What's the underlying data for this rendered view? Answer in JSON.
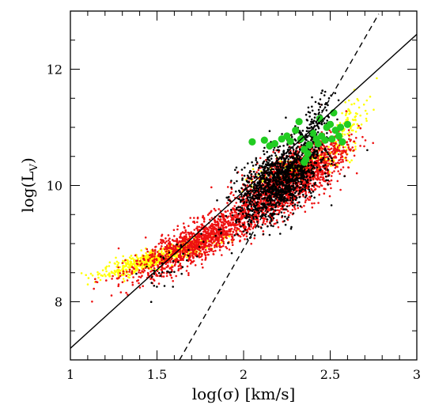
{
  "chart_data": {
    "type": "scatter",
    "title": "",
    "xlabel": "log(σ) [km/s]",
    "ylabel_main": "log(L",
    "ylabel_sub": "V",
    "ylabel_close": ")",
    "xlim": [
      1,
      3
    ],
    "ylim": [
      7,
      13
    ],
    "x_ticks": [
      1,
      1.5,
      2,
      2.5,
      3
    ],
    "x_tick_labels": [
      "1",
      "1.5",
      "2",
      "2.5",
      "3"
    ],
    "y_ticks": [
      8,
      10,
      12
    ],
    "y_tick_labels": [
      "8",
      "10",
      "12"
    ],
    "x_minor_step": 0.1,
    "y_minor_step": 0.5,
    "grid": false,
    "legend": "none",
    "colors": {
      "yellow": "#ffff00",
      "red": "#ee1111",
      "black": "#000000",
      "green": "#22cc22",
      "line": "#000000"
    },
    "fit_lines": [
      {
        "style": "solid",
        "x": [
          1.0,
          3.0
        ],
        "y": [
          7.2,
          12.6
        ]
      },
      {
        "style": "dashed",
        "x": [
          1.63,
          2.78
        ],
        "y": [
          7.0,
          12.95
        ]
      }
    ],
    "series": [
      {
        "color": "yellow",
        "marker": "dot",
        "clusters": [
          {
            "cx": 1.5,
            "cy": 8.75,
            "n": 650,
            "sa": 0.16,
            "sb": 0.16,
            "cor": 0.88
          },
          {
            "cx": 2.35,
            "cy": 10.35,
            "n": 320,
            "sa": 0.14,
            "sb": 0.17,
            "cor": 0.8
          },
          {
            "cx": 2.62,
            "cy": 11.1,
            "n": 80,
            "sa": 0.06,
            "sb": 0.25,
            "cor": 0.7
          }
        ]
      },
      {
        "color": "red",
        "marker": "dot",
        "clusters": [
          {
            "cx": 1.75,
            "cy": 9.05,
            "n": 1300,
            "sa": 0.2,
            "sb": 0.33,
            "cor": 0.86
          },
          {
            "cx": 2.22,
            "cy": 10.0,
            "n": 1200,
            "sa": 0.12,
            "sb": 0.3,
            "cor": 0.55
          },
          {
            "cx": 2.45,
            "cy": 10.4,
            "n": 400,
            "sa": 0.09,
            "sb": 0.28,
            "cor": 0.6
          }
        ]
      },
      {
        "color": "black",
        "marker": "dot",
        "clusters": [
          {
            "cx": 2.2,
            "cy": 10.05,
            "n": 1300,
            "sa": 0.12,
            "sb": 0.35,
            "cor": 0.55
          },
          {
            "cx": 2.42,
            "cy": 10.95,
            "n": 180,
            "sa": 0.05,
            "sb": 0.3,
            "cor": 0.5
          },
          {
            "cx": 1.6,
            "cy": 8.65,
            "n": 40,
            "sa": 0.1,
            "sb": 0.25,
            "cor": 0.7
          }
        ]
      },
      {
        "color": "green",
        "marker": "large-circle",
        "points": [
          [
            2.05,
            10.75
          ],
          [
            2.12,
            10.78
          ],
          [
            2.15,
            10.68
          ],
          [
            2.18,
            10.72
          ],
          [
            2.22,
            10.8
          ],
          [
            2.25,
            10.85
          ],
          [
            2.27,
            10.76
          ],
          [
            2.3,
            10.95
          ],
          [
            2.32,
            11.1
          ],
          [
            2.33,
            10.8
          ],
          [
            2.35,
            10.62
          ],
          [
            2.36,
            10.45
          ],
          [
            2.37,
            10.55
          ],
          [
            2.38,
            10.7
          ],
          [
            2.4,
            10.9
          ],
          [
            2.42,
            10.8
          ],
          [
            2.43,
            10.72
          ],
          [
            2.44,
            11.15
          ],
          [
            2.45,
            10.85
          ],
          [
            2.47,
            10.78
          ],
          [
            2.48,
            11.0
          ],
          [
            2.5,
            11.05
          ],
          [
            2.51,
            10.8
          ],
          [
            2.52,
            11.25
          ],
          [
            2.53,
            10.95
          ],
          [
            2.55,
            10.85
          ],
          [
            2.56,
            11.0
          ],
          [
            2.57,
            10.75
          ],
          [
            2.6,
            11.05
          ],
          [
            2.35,
            10.4
          ]
        ]
      }
    ]
  }
}
